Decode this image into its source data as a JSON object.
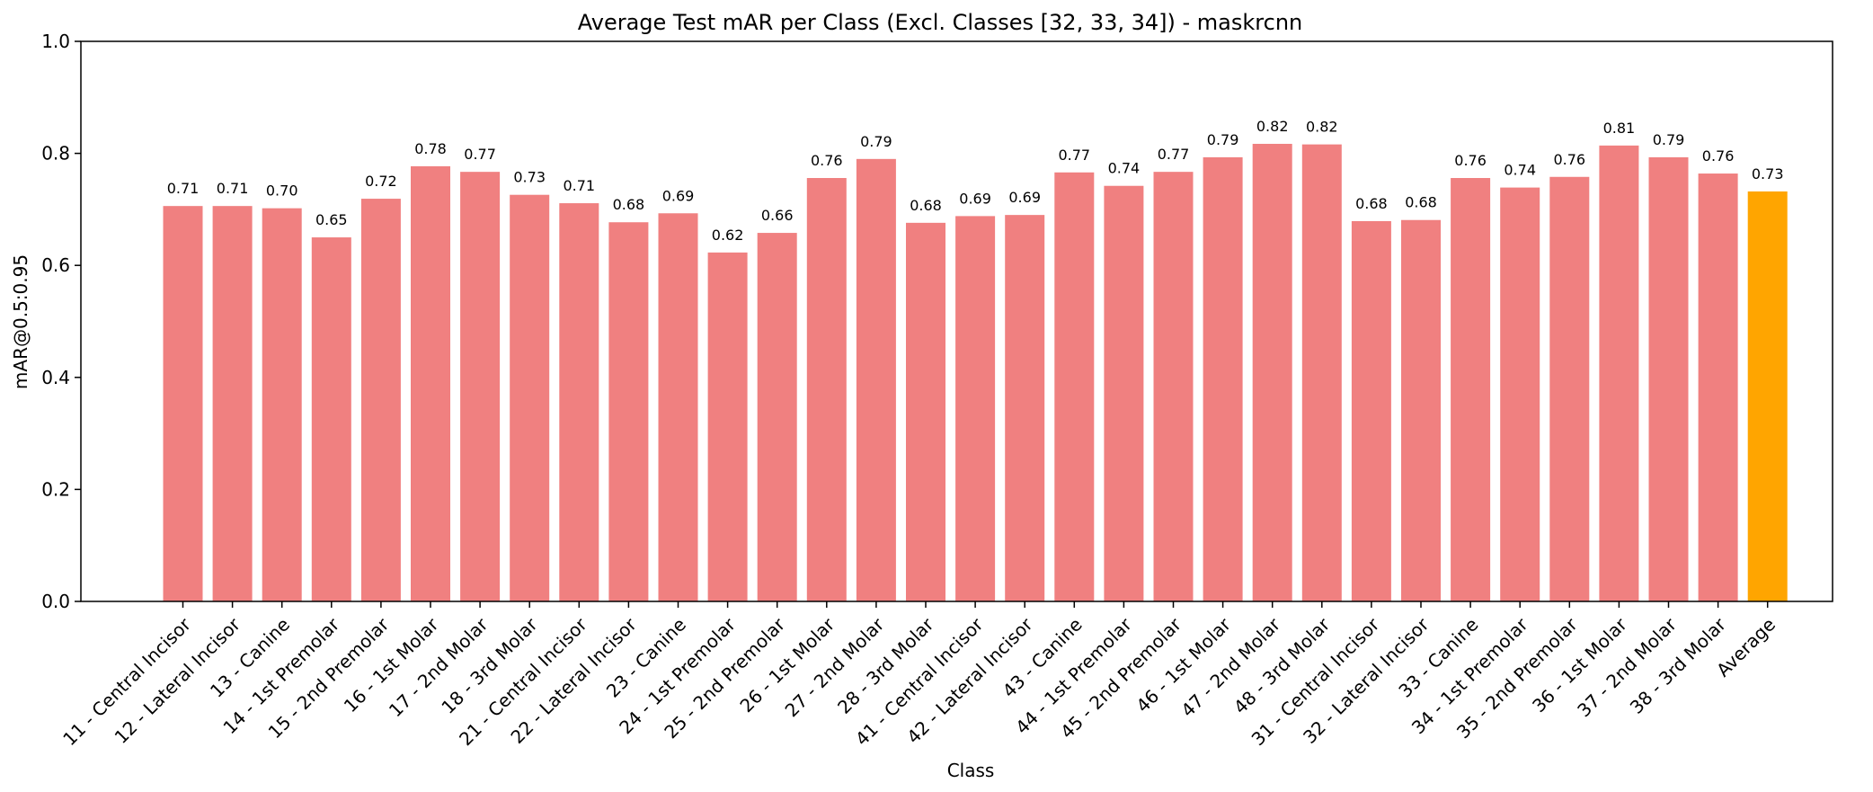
{
  "chart_data": {
    "type": "bar",
    "title": "Average Test mAR per Class (Excl. Classes [32, 33, 34]) - maskrcnn",
    "xlabel": "Class",
    "ylabel": "mAR@0.5:0.95",
    "ylim": [
      0,
      1.0
    ],
    "yticks": [
      "0.0",
      "0.2",
      "0.4",
      "0.6",
      "0.8",
      "1.0"
    ],
    "grid": false,
    "legend": "none",
    "colors": {
      "bar": "#f08080",
      "average": "#ffa500"
    },
    "categories": [
      "11 - Central Incisor",
      "12 - Lateral Incisor",
      "13 - Canine",
      "14 - 1st Premolar",
      "15 - 2nd Premolar",
      "16 - 1st Molar",
      "17 - 2nd Molar",
      "18 - 3rd Molar",
      "21 - Central Incisor",
      "22 - Lateral Incisor",
      "23 - Canine",
      "24 - 1st Premolar",
      "25 - 2nd Premolar",
      "26 - 1st Molar",
      "27 - 2nd Molar",
      "28 - 3rd Molar",
      "41 - Central Incisor",
      "42 - Lateral Incisor",
      "43 - Canine",
      "44 - 1st Premolar",
      "45 - 2nd Premolar",
      "46 - 1st Molar",
      "47 - 2nd Molar",
      "48 - 3rd Molar",
      "31 - Central Incisor",
      "32 - Lateral Incisor",
      "33 - Canine",
      "34 - 1st Premolar",
      "35 - 2nd Premolar",
      "36 - 1st Molar",
      "37 - 2nd Molar",
      "38 - 3rd Molar",
      "Average"
    ],
    "values": [
      0.706,
      0.706,
      0.702,
      0.65,
      0.719,
      0.777,
      0.767,
      0.726,
      0.711,
      0.677,
      0.693,
      0.623,
      0.658,
      0.756,
      0.79,
      0.676,
      0.688,
      0.69,
      0.766,
      0.742,
      0.767,
      0.793,
      0.817,
      0.816,
      0.679,
      0.681,
      0.756,
      0.739,
      0.758,
      0.814,
      0.793,
      0.764,
      0.732
    ],
    "value_labels": [
      "0.71",
      "0.71",
      "0.70",
      "0.65",
      "0.72",
      "0.78",
      "0.77",
      "0.73",
      "0.71",
      "0.68",
      "0.69",
      "0.62",
      "0.66",
      "0.76",
      "0.79",
      "0.68",
      "0.69",
      "0.69",
      "0.77",
      "0.74",
      "0.77",
      "0.79",
      "0.82",
      "0.82",
      "0.68",
      "0.68",
      "0.76",
      "0.74",
      "0.76",
      "0.81",
      "0.79",
      "0.76",
      "0.73"
    ]
  }
}
